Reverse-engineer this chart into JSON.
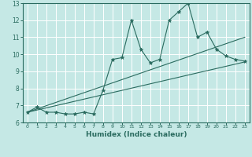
{
  "xlabel": "Humidex (Indice chaleur)",
  "ylabel": "",
  "xlim": [
    -0.5,
    23.5
  ],
  "ylim": [
    6,
    13
  ],
  "yticks": [
    6,
    7,
    8,
    9,
    10,
    11,
    12,
    13
  ],
  "xticks": [
    0,
    1,
    2,
    3,
    4,
    5,
    6,
    7,
    8,
    9,
    10,
    11,
    12,
    13,
    14,
    15,
    16,
    17,
    18,
    19,
    20,
    21,
    22,
    23
  ],
  "background_color": "#c5e8e5",
  "line_color": "#2a6b5f",
  "grid_color": "#ffffff",
  "line1_x": [
    0,
    1,
    2,
    3,
    4,
    5,
    6,
    7,
    8,
    9,
    10,
    11,
    12,
    13,
    14,
    15,
    16,
    17,
    18,
    19,
    20,
    21,
    22,
    23
  ],
  "line1_y": [
    6.6,
    6.9,
    6.6,
    6.6,
    6.5,
    6.5,
    6.6,
    6.5,
    7.9,
    9.7,
    9.8,
    12.0,
    10.3,
    9.5,
    9.7,
    12.0,
    12.5,
    13.0,
    11.0,
    11.3,
    10.3,
    9.9,
    9.7,
    9.6
  ],
  "line2_x": [
    0,
    23
  ],
  "line2_y": [
    6.6,
    9.55
  ],
  "line3_x": [
    0,
    23
  ],
  "line3_y": [
    6.6,
    11.0
  ]
}
